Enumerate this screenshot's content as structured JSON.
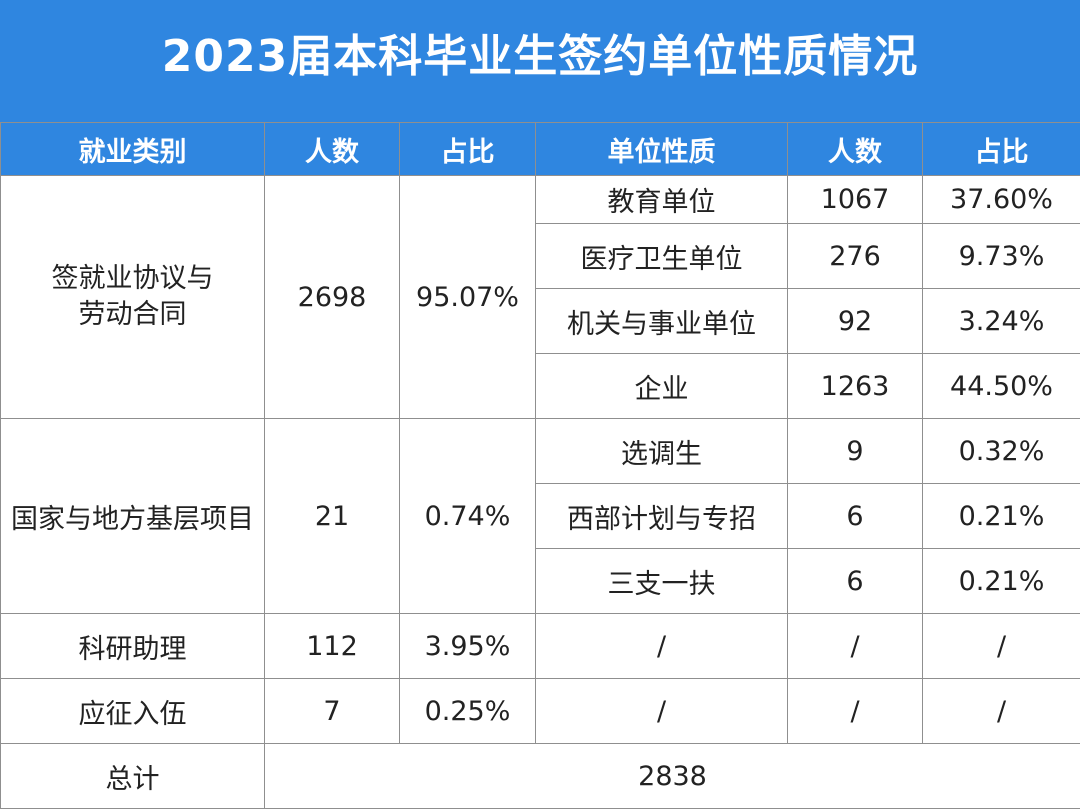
{
  "title": "2023届本科毕业生签约单位性质情况",
  "headers": [
    "就业类别",
    "人数",
    "占比",
    "单位性质",
    "人数",
    "占比"
  ],
  "groups": [
    {
      "category": "签就业协议与劳动合同",
      "category_line1": "签就业协议与",
      "category_line2": "劳动合同",
      "count": "2698",
      "ratio": "95.07%",
      "units": [
        {
          "type": "教育单位",
          "count": "1067",
          "ratio": "37.60%"
        },
        {
          "type": "医疗卫生单位",
          "count": "276",
          "ratio": "9.73%"
        },
        {
          "type": "机关与事业单位",
          "count": "92",
          "ratio": "3.24%"
        },
        {
          "type": "企业",
          "count": "1263",
          "ratio": "44.50%"
        }
      ]
    },
    {
      "category": "国家与地方基层项目",
      "count": "21",
      "ratio": "0.74%",
      "units": [
        {
          "type": "选调生",
          "count": "9",
          "ratio": "0.32%"
        },
        {
          "type": "西部计划与专招",
          "count": "6",
          "ratio": "0.21%"
        },
        {
          "type": "三支一扶",
          "count": "6",
          "ratio": "0.21%"
        }
      ]
    },
    {
      "category": "科研助理",
      "count": "112",
      "ratio": "3.95%",
      "units": [
        {
          "type": "/",
          "count": "/",
          "ratio": "/"
        }
      ]
    },
    {
      "category": "应征入伍",
      "count": "7",
      "ratio": "0.25%",
      "units": [
        {
          "type": "/",
          "count": "/",
          "ratio": "/"
        }
      ]
    }
  ],
  "total": {
    "label": "总计",
    "value": "2838"
  }
}
